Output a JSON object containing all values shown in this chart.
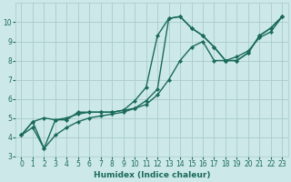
{
  "xlabel": "Humidex (Indice chaleur)",
  "xlim": [
    -0.5,
    23.5
  ],
  "ylim": [
    3,
    11
  ],
  "yticks": [
    3,
    4,
    5,
    6,
    7,
    8,
    9,
    10
  ],
  "xticks": [
    0,
    1,
    2,
    3,
    4,
    5,
    6,
    7,
    8,
    9,
    10,
    11,
    12,
    13,
    14,
    15,
    16,
    17,
    18,
    19,
    20,
    21,
    22,
    23
  ],
  "background_color": "#cce8e8",
  "grid_color": "#aacccc",
  "line_color": "#1a6b5a",
  "series1_x": [
    0,
    1,
    2,
    3,
    4,
    5,
    6,
    7,
    8,
    9,
    10,
    11,
    12,
    13,
    14,
    15,
    16,
    17,
    18,
    19,
    20,
    21,
    22,
    23
  ],
  "series1_y": [
    4.1,
    4.8,
    5.0,
    4.9,
    4.9,
    5.3,
    5.3,
    5.3,
    5.3,
    5.4,
    5.9,
    6.6,
    9.3,
    10.2,
    10.3,
    9.7,
    9.3,
    8.7,
    8.0,
    8.0,
    8.4,
    9.3,
    9.7,
    10.3
  ],
  "series2_x": [
    0,
    1,
    2,
    3,
    4,
    5,
    6,
    7,
    8,
    9,
    10,
    11,
    12,
    13,
    14,
    15,
    16,
    17,
    18,
    19,
    20,
    21,
    22,
    23
  ],
  "series2_y": [
    4.1,
    4.8,
    3.4,
    4.9,
    5.0,
    5.2,
    5.3,
    5.3,
    5.3,
    5.4,
    5.5,
    5.9,
    6.5,
    10.2,
    10.3,
    9.7,
    9.3,
    8.7,
    8.0,
    8.0,
    8.4,
    9.3,
    9.7,
    10.3
  ],
  "series3_x": [
    0,
    1,
    2,
    3,
    4,
    5,
    6,
    7,
    8,
    9,
    10,
    11,
    12,
    13,
    14,
    15,
    16,
    17,
    18,
    19,
    20,
    21,
    22,
    23
  ],
  "series3_y": [
    4.1,
    4.5,
    3.4,
    4.1,
    4.5,
    4.8,
    5.0,
    5.1,
    5.2,
    5.3,
    5.5,
    5.7,
    6.2,
    7.0,
    8.0,
    8.7,
    9.0,
    8.0,
    8.0,
    8.2,
    8.5,
    9.2,
    9.5,
    10.3
  ],
  "line_width": 1.0,
  "marker_size": 2.2,
  "tick_fontsize": 5.5,
  "xlabel_fontsize": 6.5
}
